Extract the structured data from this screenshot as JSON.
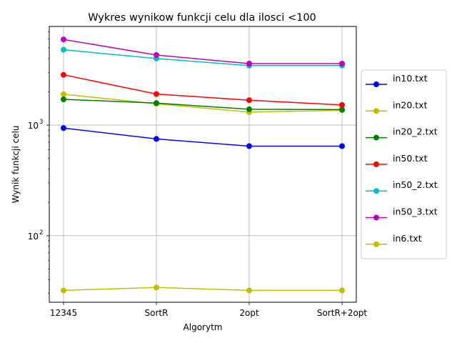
{
  "chart_data": {
    "type": "line",
    "title": "Wykres wynikow funkcji celu dla ilosci <100",
    "xlabel": "Algorytm",
    "ylabel": "Wynik funkcji celu",
    "yscale": "log",
    "ylim": [
      25,
      7800
    ],
    "grid": true,
    "legend_position": "right",
    "categories": [
      "12345",
      "SortR",
      "2opt",
      "SortR+2opt"
    ],
    "y_ticks": [
      {
        "value": 100,
        "base": "10",
        "exp": "2"
      },
      {
        "value": 1000,
        "base": "10",
        "exp": "3"
      }
    ],
    "series": [
      {
        "name": "in10.txt",
        "color": "#0000ff",
        "values": [
          940,
          750,
          645,
          645
        ]
      },
      {
        "name": "in20.txt",
        "color": "#bfbf00",
        "values": [
          1900,
          1560,
          1310,
          1360
        ]
      },
      {
        "name": "in20_2.txt",
        "color": "#008000",
        "values": [
          1710,
          1580,
          1390,
          1380
        ]
      },
      {
        "name": "in50.txt",
        "color": "#ff0000",
        "values": [
          2850,
          1910,
          1680,
          1520
        ]
      },
      {
        "name": "in50_2.txt",
        "color": "#00bfbf",
        "values": [
          4800,
          4000,
          3450,
          3450
        ]
      },
      {
        "name": "in50_3.txt",
        "color": "#bf00bf",
        "values": [
          5950,
          4300,
          3600,
          3600
        ]
      },
      {
        "name": "in6.txt",
        "color": "#bfbf00",
        "values": [
          32,
          34,
          32,
          32
        ]
      }
    ]
  }
}
